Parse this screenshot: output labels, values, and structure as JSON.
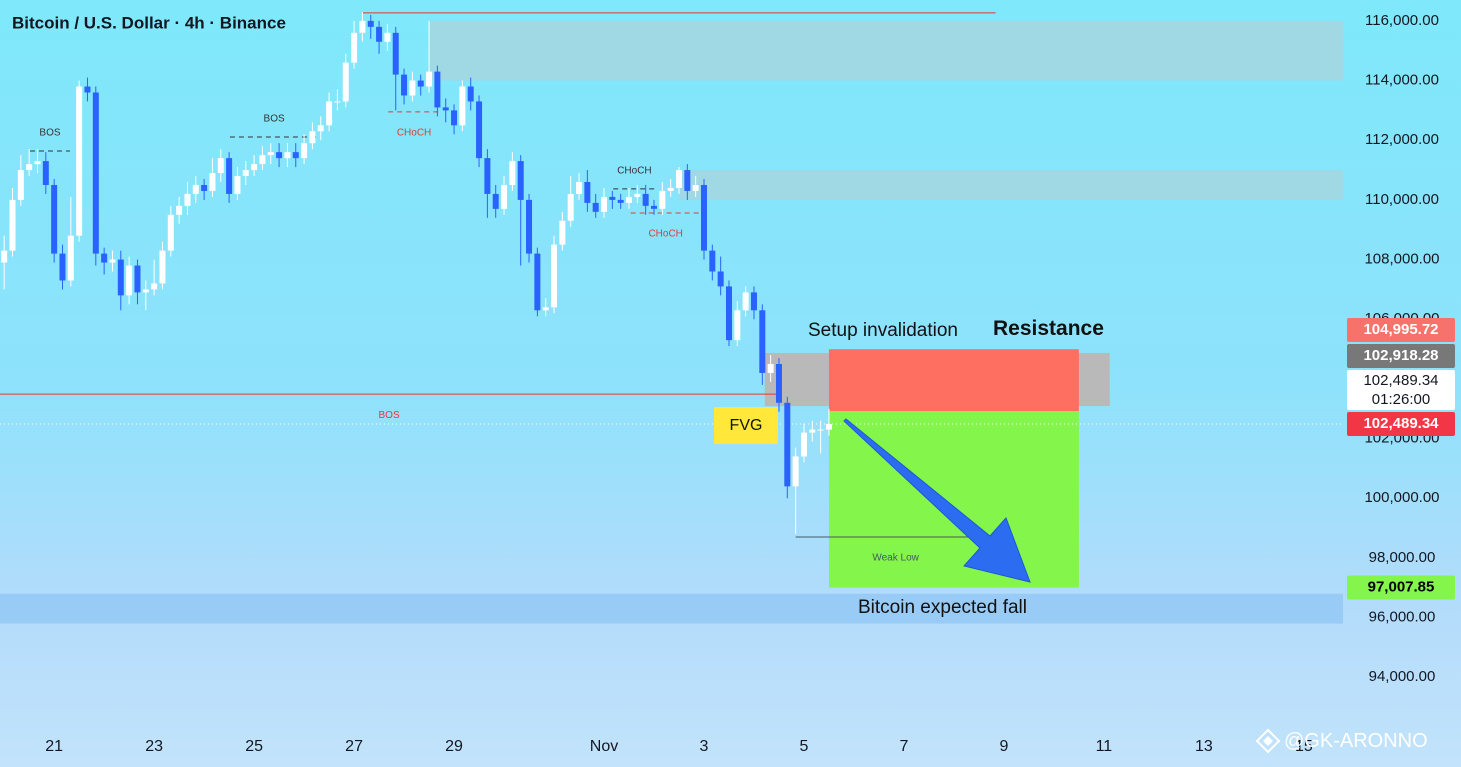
{
  "chart_data": {
    "type": "candlestick",
    "title": "Bitcoin / U.S. Dollar · 4h · Binance",
    "up_color": "#ffffff",
    "down_color": "#2962ff",
    "xlim": [
      -0.5,
      160.7
    ],
    "ylim": [
      92400,
      116700
    ],
    "xticks": [
      {
        "value": 6,
        "label": "21"
      },
      {
        "value": 18,
        "label": "23"
      },
      {
        "value": 30,
        "label": "25"
      },
      {
        "value": 42,
        "label": "27"
      },
      {
        "value": 54,
        "label": "29"
      },
      {
        "value": 72,
        "label": "Nov"
      },
      {
        "value": 84,
        "label": "3"
      },
      {
        "value": 96,
        "label": "5"
      },
      {
        "value": 108,
        "label": "7"
      },
      {
        "value": 120,
        "label": "9"
      },
      {
        "value": 132,
        "label": "11"
      },
      {
        "value": 144,
        "label": "13"
      },
      {
        "value": 156,
        "label": "15"
      }
    ],
    "yticks": [
      {
        "value": 94000,
        "label": "94,000.00"
      },
      {
        "value": 96000,
        "label": "96,000.00"
      },
      {
        "value": 98000,
        "label": "98,000.00"
      },
      {
        "value": 100000,
        "label": "100,000.00"
      },
      {
        "value": 102000,
        "label": "102,000.00"
      },
      {
        "value": 104000,
        "label": "104,000.00"
      },
      {
        "value": 106000,
        "label": "106,000.00"
      },
      {
        "value": 108000,
        "label": "108,000.00"
      },
      {
        "value": 110000,
        "label": "110,000.00"
      },
      {
        "value": 112000,
        "label": "112,000.00"
      },
      {
        "value": 114000,
        "label": "114,000.00"
      },
      {
        "value": 116000,
        "label": "116,000.00"
      }
    ],
    "open": [
      107900,
      108300,
      110000,
      111000,
      111200,
      111300,
      110500,
      108200,
      107300,
      108800,
      113800,
      113600,
      108200,
      107900,
      108000,
      106800,
      107800,
      106900,
      107000,
      107200,
      108300,
      109500,
      109800,
      110200,
      110500,
      110300,
      110900,
      111400,
      110200,
      110800,
      111000,
      111200,
      111500,
      111600,
      111400,
      111600,
      111400,
      111900,
      112300,
      112500,
      113300,
      113300,
      114600,
      115600,
      116000,
      115800,
      115300,
      115600,
      114200,
      113500,
      114000,
      113800,
      114300,
      113100,
      113000,
      112500,
      113800,
      113300,
      111400,
      110200,
      109700,
      110500,
      111300,
      110000,
      108200,
      106300,
      106400,
      108500,
      109300,
      110200,
      110600,
      109900,
      109600,
      110100,
      110000,
      109900,
      110100,
      110200,
      109800,
      109700,
      110300,
      110400,
      111000,
      110300,
      110500,
      108300,
      107600,
      107100,
      105300,
      106300,
      106900,
      106300,
      104200,
      104500,
      103200,
      100400,
      101400,
      102200,
      102300,
      102300
    ],
    "high": [
      108800,
      110400,
      111500,
      111700,
      111700,
      111600,
      110700,
      108500,
      110100,
      114000,
      114100,
      113800,
      108400,
      108300,
      108300,
      108100,
      108000,
      107300,
      108000,
      108600,
      109800,
      110100,
      110600,
      110800,
      110700,
      111400,
      111700,
      111600,
      111100,
      111300,
      111500,
      111800,
      111900,
      111900,
      111900,
      111900,
      112200,
      112600,
      112800,
      113600,
      113700,
      114900,
      116000,
      116300,
      116200,
      116000,
      115900,
      115800,
      114400,
      114300,
      114200,
      116000,
      114500,
      113400,
      113200,
      114000,
      114100,
      113500,
      111700,
      110500,
      110800,
      111600,
      111500,
      110200,
      108400,
      106700,
      108800,
      109600,
      110800,
      110900,
      111000,
      110200,
      110400,
      110300,
      110200,
      110400,
      110500,
      110500,
      110000,
      110600,
      110700,
      111100,
      111200,
      110800,
      110700,
      108500,
      108100,
      107300,
      106600,
      107100,
      107100,
      106500,
      104800,
      104700,
      103400,
      101700,
      102500,
      102600,
      102600,
      103000
    ],
    "low": [
      107000,
      108100,
      109800,
      110800,
      110900,
      110200,
      107900,
      107000,
      107100,
      108600,
      113300,
      107800,
      107500,
      107600,
      106300,
      106500,
      106500,
      106300,
      106800,
      107000,
      108100,
      109200,
      109500,
      109900,
      110000,
      110100,
      110600,
      109900,
      110000,
      110500,
      110800,
      111000,
      111200,
      111100,
      111100,
      111100,
      111200,
      111700,
      112000,
      112300,
      113000,
      113100,
      114400,
      115300,
      115400,
      114900,
      115000,
      113000,
      113200,
      113300,
      113500,
      113600,
      112800,
      112600,
      112200,
      112300,
      113000,
      111100,
      109400,
      109400,
      109500,
      110300,
      107800,
      107900,
      106100,
      106100,
      106200,
      108300,
      109100,
      110000,
      109600,
      109400,
      109400,
      109700,
      109700,
      109700,
      109900,
      109500,
      109500,
      109500,
      110100,
      110200,
      110000,
      110100,
      108000,
      107300,
      106800,
      105100,
      105100,
      106100,
      106000,
      103800,
      103900,
      102900,
      100000,
      98800,
      101200,
      101900,
      101500,
      102100
    ],
    "close": [
      108300,
      110000,
      111000,
      111200,
      111300,
      110500,
      108200,
      107300,
      108800,
      113800,
      113600,
      108200,
      107900,
      108000,
      106800,
      107800,
      106900,
      107000,
      107200,
      108300,
      109500,
      109800,
      110200,
      110500,
      110300,
      110900,
      111400,
      110200,
      110800,
      111000,
      111200,
      111500,
      111600,
      111400,
      111600,
      111400,
      111900,
      112300,
      112500,
      113300,
      113300,
      114600,
      115600,
      116000,
      115800,
      115300,
      115600,
      114200,
      113500,
      114000,
      113800,
      114300,
      113100,
      113000,
      112500,
      113800,
      113300,
      111400,
      110200,
      109700,
      110500,
      111300,
      110000,
      108200,
      106300,
      106400,
      108500,
      109300,
      110200,
      110600,
      109900,
      109600,
      110100,
      110000,
      109900,
      110100,
      110200,
      109800,
      109700,
      110300,
      110400,
      111000,
      110300,
      110500,
      108300,
      107600,
      107100,
      105300,
      106300,
      106900,
      106300,
      104200,
      104500,
      103200,
      100400,
      101400,
      102200,
      102300,
      102300,
      102489.34
    ],
    "zones": [
      {
        "low": 114000,
        "high": 116000,
        "start": 51.1,
        "end": 160.7,
        "color": "#a0d8e4"
      },
      {
        "low": 110000,
        "high": 111000,
        "start": 81,
        "end": 160.7,
        "color": "#a0d8e4"
      },
      {
        "low": 103090,
        "high": 104870,
        "start": 91.3,
        "end": 132.7,
        "color": "#b9b9b9"
      },
      {
        "low": 95800,
        "high": 96800,
        "start": -0.5,
        "end": 160.7,
        "color": "#98cbf6"
      }
    ],
    "levels": [
      {
        "label": "BOS",
        "value": 111640,
        "from": 3.1,
        "to": 7.9,
        "color": "#333333",
        "dash": true,
        "label_pos": "above"
      },
      {
        "label": "BOS",
        "value": 112110,
        "from": 27.1,
        "to": 37.7,
        "color": "#333333",
        "dash": true,
        "label_pos": "above"
      },
      {
        "label": "CHoCH",
        "value": 112950,
        "from": 46.1,
        "to": 52.3,
        "color": "#e53935",
        "dash": true,
        "label_pos": "below"
      },
      {
        "label": "CHoCH",
        "value": 110370,
        "from": 73.1,
        "to": 78.2,
        "color": "#333333",
        "dash": true,
        "label_pos": "above"
      },
      {
        "label": "CHoCH",
        "value": 109560,
        "from": 75.2,
        "to": 83.6,
        "color": "#e53935",
        "dash": true,
        "label_pos": "below"
      },
      {
        "label": "BOS",
        "value": 103490,
        "from": -0.5,
        "to": 92.9,
        "color": "#e53935",
        "dash": false,
        "label_pos": "below"
      },
      {
        "value": 116270,
        "from": 43,
        "to": 119,
        "color": "#e53935",
        "dash": false
      },
      {
        "label": "Weak Low",
        "value": 98700,
        "from": 95,
        "to": 119,
        "color": "#455a64",
        "dash": false,
        "label_pos": "below"
      }
    ],
    "position": {
      "stop": 104995.72,
      "entry": 102918.28,
      "target": 97007.85,
      "start": 99,
      "end": 129,
      "stop_color": "#ff6f61",
      "target_color": "#84f54a"
    },
    "price_labels": [
      {
        "value": 97007.85,
        "label": "97,007.85",
        "color": "#84f54a",
        "text_color": "#000000"
      },
      {
        "value": 102489.34,
        "label": "102,489.34",
        "color": "#f23645",
        "text_color": "#ffffff"
      },
      {
        "value": 102489.34,
        "label": "102,489.34",
        "countdown": "01:26:00",
        "color": "#ffffff",
        "text_color": "#131722"
      },
      {
        "value": 102918.28,
        "label": "102,918.28",
        "color": "#787878",
        "text_color": "#ffffff"
      },
      {
        "value": 104995.72,
        "label": "104,995.72",
        "color": "#f7726a",
        "text_color": "#ffffff"
      }
    ],
    "texts": {
      "fvg": "FVG",
      "setup": "Setup invalidation",
      "resistance": "Resistance",
      "fall": "Bitcoin expected fall"
    },
    "watermark": "@GK-ARONNO"
  }
}
